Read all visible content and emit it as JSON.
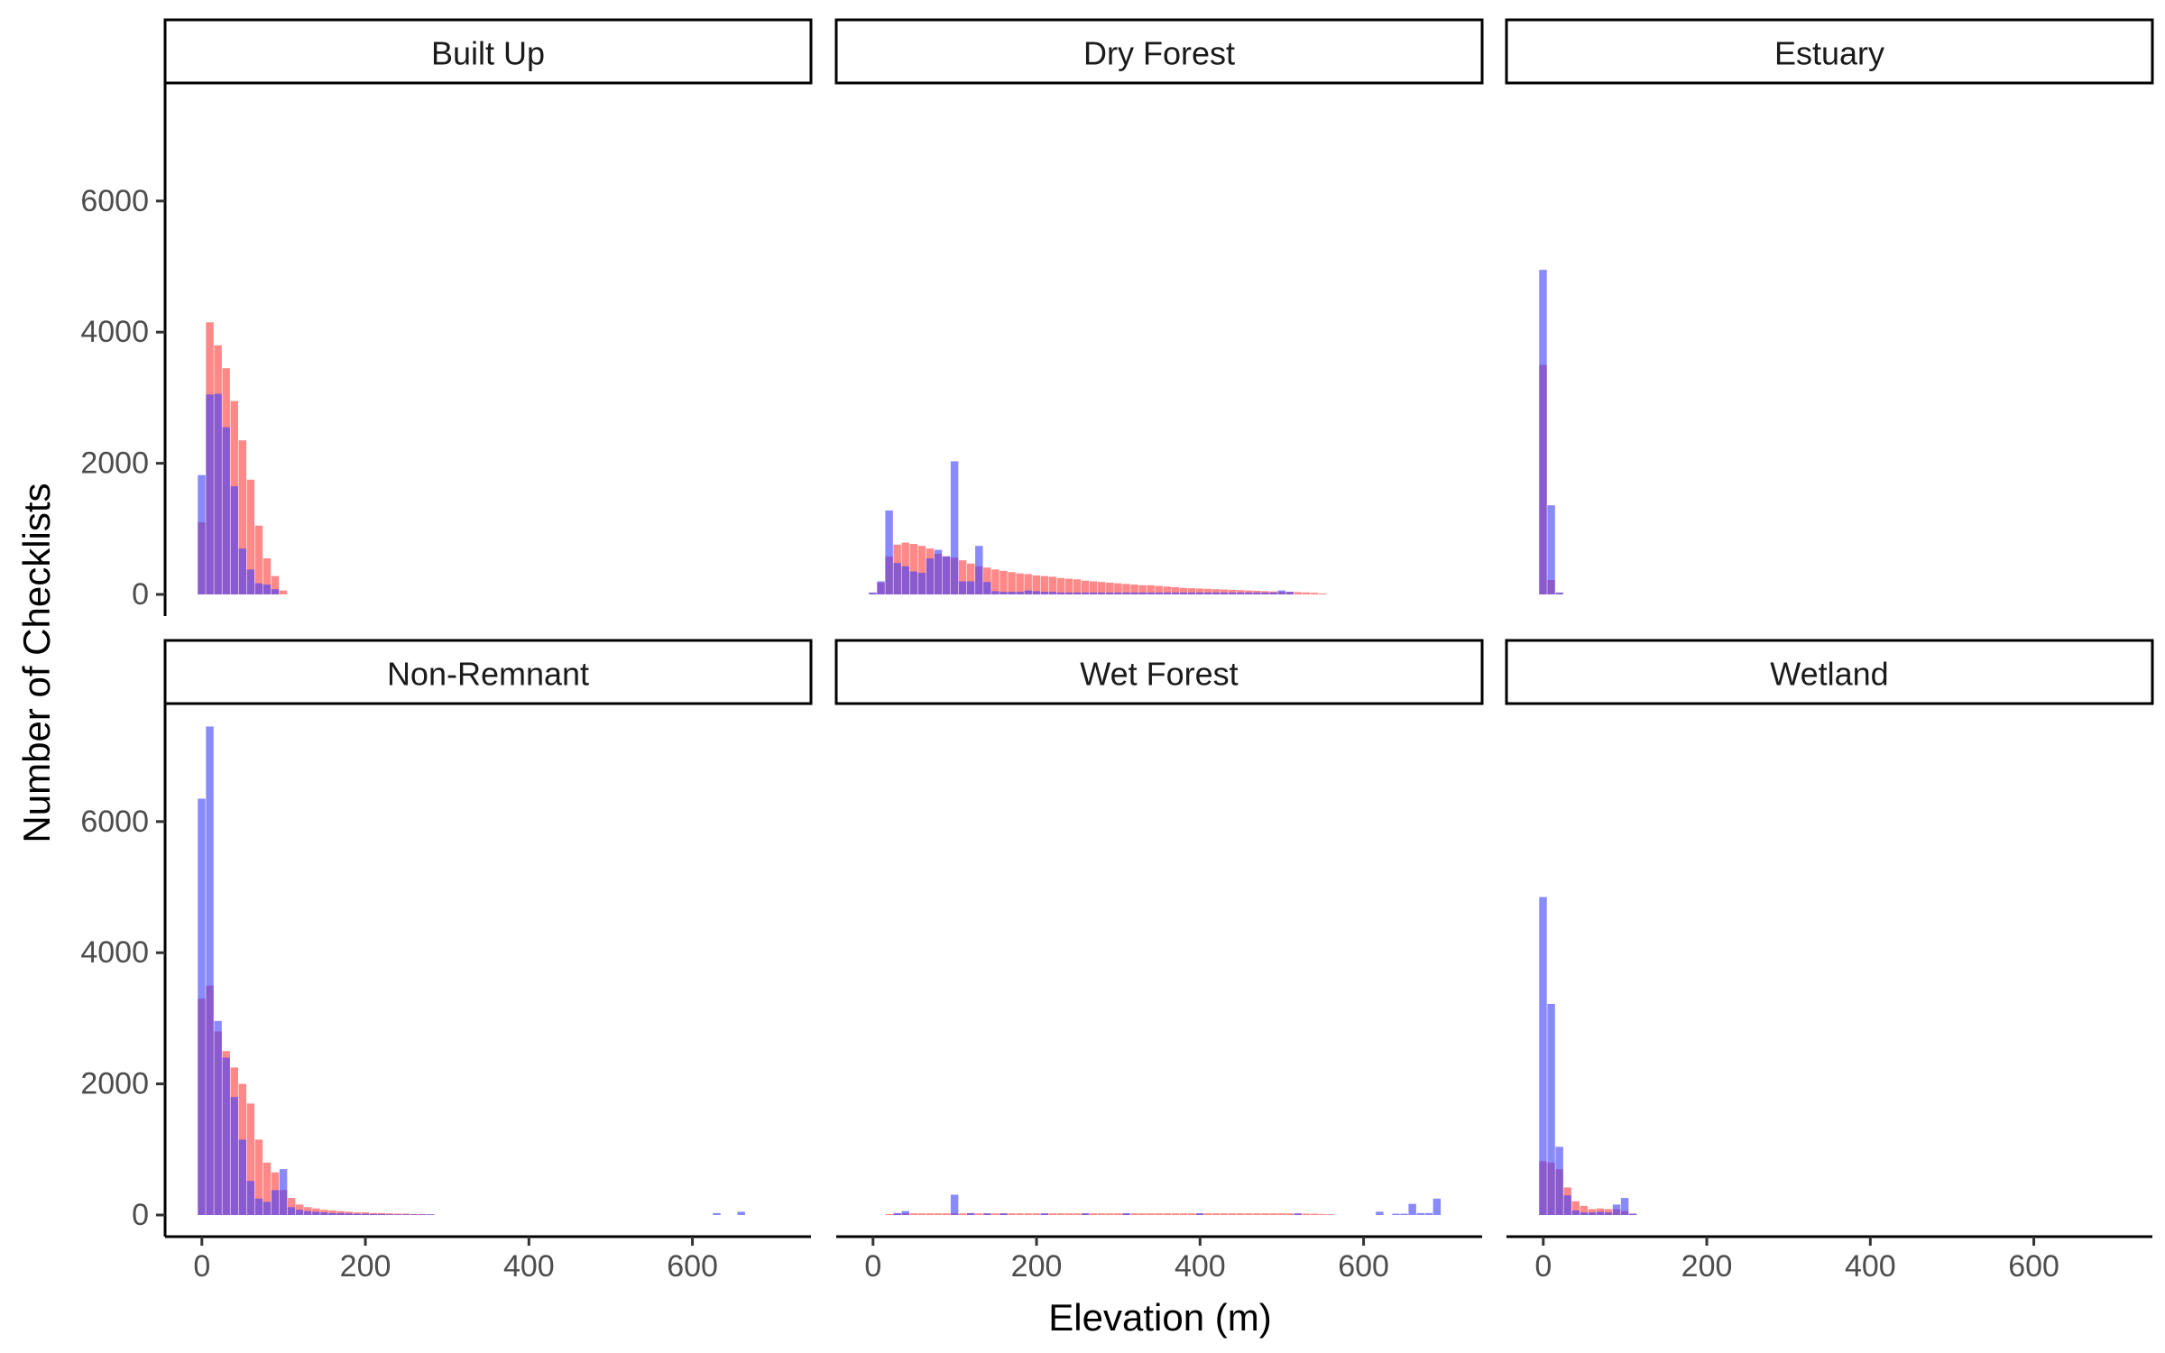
{
  "chart_data": {
    "type": "bar",
    "subtype": "faceted-overlaid-histogram",
    "xlabel": "Elevation (m)",
    "ylabel": "Number of Checklists",
    "xlim": [
      -45,
      745
    ],
    "ylim": [
      0,
      7800
    ],
    "x_ticks": [
      0,
      200,
      400,
      600
    ],
    "y_ticks": [
      0,
      2000,
      4000,
      6000
    ],
    "bin_width": 10,
    "legend": "none",
    "grid": false,
    "series_colors": [
      "#ff3b3b",
      "#3c3cff"
    ],
    "bar_opacity": 0.6,
    "facets": [
      {
        "label": "Built Up",
        "series": [
          {
            "x": [
              0,
              10,
              20,
              30,
              40,
              50,
              60,
              70,
              80,
              90,
              100
            ],
            "values": [
              1100,
              4150,
              3800,
              3450,
              2950,
              2350,
              1750,
              1050,
              550,
              280,
              60
            ]
          },
          {
            "x": [
              0,
              10,
              20,
              30,
              40,
              50,
              60,
              70,
              80,
              90
            ],
            "values": [
              1820,
              3050,
              3060,
              2550,
              1650,
              700,
              380,
              170,
              150,
              80
            ]
          }
        ]
      },
      {
        "label": "Dry Forest",
        "series": [
          {
            "x": [
              0,
              10,
              20,
              30,
              40,
              50,
              60,
              70,
              80,
              90,
              100,
              110,
              120,
              130,
              140,
              150,
              160,
              170,
              180,
              190,
              200,
              210,
              220,
              230,
              240,
              250,
              260,
              270,
              280,
              290,
              300,
              310,
              320,
              330,
              340,
              350,
              360,
              370,
              380,
              390,
              400,
              410,
              420,
              430,
              440,
              450,
              460,
              470,
              480,
              490,
              500,
              510,
              520,
              530,
              540,
              550
            ],
            "values": [
              20,
              180,
              580,
              760,
              790,
              770,
              740,
              700,
              620,
              580,
              560,
              520,
              470,
              430,
              410,
              380,
              360,
              340,
              320,
              310,
              290,
              280,
              270,
              250,
              240,
              230,
              210,
              200,
              190,
              180,
              170,
              160,
              150,
              140,
              140,
              130,
              120,
              110,
              100,
              95,
              90,
              85,
              80,
              75,
              70,
              65,
              60,
              55,
              50,
              45,
              40,
              38,
              35,
              30,
              25,
              15
            ]
          },
          {
            "x": [
              0,
              10,
              20,
              30,
              40,
              50,
              60,
              70,
              80,
              90,
              100,
              110,
              120,
              130,
              140,
              150,
              160,
              170,
              180,
              190,
              200,
              210,
              220,
              230,
              240,
              250,
              260,
              270,
              280,
              290,
              300,
              310,
              320,
              330,
              340,
              350,
              360,
              370,
              380,
              390,
              400,
              410,
              420,
              430,
              440,
              450,
              460,
              470,
              480,
              490,
              500,
              510
            ],
            "values": [
              30,
              200,
              1280,
              480,
              430,
              350,
              330,
              550,
              680,
              580,
              2030,
              200,
              200,
              740,
              190,
              50,
              40,
              40,
              40,
              60,
              50,
              40,
              40,
              30,
              30,
              30,
              30,
              30,
              30,
              30,
              30,
              30,
              30,
              30,
              30,
              30,
              30,
              30,
              30,
              30,
              30,
              30,
              30,
              30,
              30,
              30,
              30,
              30,
              30,
              30,
              60,
              40
            ]
          }
        ]
      },
      {
        "label": "Estuary",
        "series": [
          {
            "x": [
              0,
              10,
              20
            ],
            "values": [
              3500,
              220,
              20
            ]
          },
          {
            "x": [
              0,
              10,
              20
            ],
            "values": [
              4950,
              1360,
              30
            ]
          }
        ]
      },
      {
        "label": "Non-Remnant",
        "series": [
          {
            "x": [
              0,
              10,
              20,
              30,
              40,
              50,
              60,
              70,
              80,
              90,
              100,
              110,
              120,
              130,
              140,
              150,
              160,
              170,
              180,
              190,
              200,
              210,
              220,
              230,
              240,
              250,
              260,
              270,
              280
            ],
            "values": [
              3300,
              3500,
              2800,
              2500,
              2250,
              2000,
              1700,
              1150,
              800,
              650,
              380,
              260,
              160,
              120,
              100,
              80,
              70,
              60,
              50,
              40,
              40,
              30,
              30,
              25,
              20,
              20,
              15,
              15,
              10
            ]
          },
          {
            "x": [
              0,
              10,
              20,
              30,
              40,
              50,
              60,
              70,
              80,
              90,
              100,
              110,
              120,
              130,
              140,
              150,
              160,
              170,
              180,
              190,
              200,
              210,
              220,
              230,
              240,
              250,
              260,
              270,
              280,
              630,
              660
            ],
            "values": [
              6350,
              7450,
              2960,
              2400,
              1800,
              1150,
              520,
              250,
              200,
              380,
              700,
              120,
              80,
              60,
              50,
              40,
              30,
              30,
              25,
              20,
              20,
              15,
              15,
              10,
              10,
              10,
              10,
              10,
              10,
              30,
              50
            ]
          }
        ]
      },
      {
        "label": "Wet Forest",
        "series": [
          {
            "x": [
              20,
              30,
              40,
              50,
              60,
              70,
              80,
              90,
              100,
              110,
              120,
              130,
              140,
              150,
              160,
              170,
              180,
              190,
              200,
              210,
              220,
              230,
              240,
              250,
              260,
              270,
              280,
              290,
              300,
              310,
              320,
              330,
              340,
              350,
              360,
              370,
              380,
              390,
              400,
              410,
              420,
              430,
              440,
              450,
              460,
              470,
              480,
              490,
              500,
              510,
              520,
              530,
              540,
              550,
              560
            ],
            "values": [
              15,
              20,
              25,
              25,
              25,
              25,
              25,
              25,
              25,
              25,
              25,
              25,
              25,
              25,
              25,
              25,
              25,
              25,
              25,
              25,
              25,
              25,
              25,
              25,
              25,
              25,
              25,
              25,
              25,
              25,
              25,
              25,
              25,
              25,
              25,
              25,
              25,
              25,
              25,
              25,
              25,
              25,
              25,
              25,
              25,
              25,
              25,
              25,
              25,
              25,
              20,
              20,
              20,
              15,
              10
            ]
          },
          {
            "x": [
              30,
              40,
              100,
              120,
              140,
              160,
              210,
              260,
              310,
              400,
              520,
              620,
              640,
              650,
              660,
              670,
              680,
              690
            ],
            "values": [
              30,
              60,
              310,
              30,
              25,
              25,
              25,
              25,
              25,
              25,
              25,
              50,
              20,
              20,
              170,
              30,
              30,
              250
            ]
          }
        ]
      },
      {
        "label": "Wetland",
        "series": [
          {
            "x": [
              0,
              10,
              20,
              30,
              40,
              50,
              60,
              70,
              80,
              90,
              100,
              110
            ],
            "values": [
              820,
              800,
              700,
              420,
              210,
              140,
              90,
              100,
              90,
              90,
              60,
              20
            ]
          },
          {
            "x": [
              0,
              10,
              20,
              30,
              40,
              50,
              60,
              70,
              80,
              90,
              100,
              110
            ],
            "values": [
              4850,
              3220,
              1040,
              300,
              70,
              40,
              40,
              50,
              40,
              160,
              260,
              20
            ]
          }
        ]
      }
    ]
  }
}
